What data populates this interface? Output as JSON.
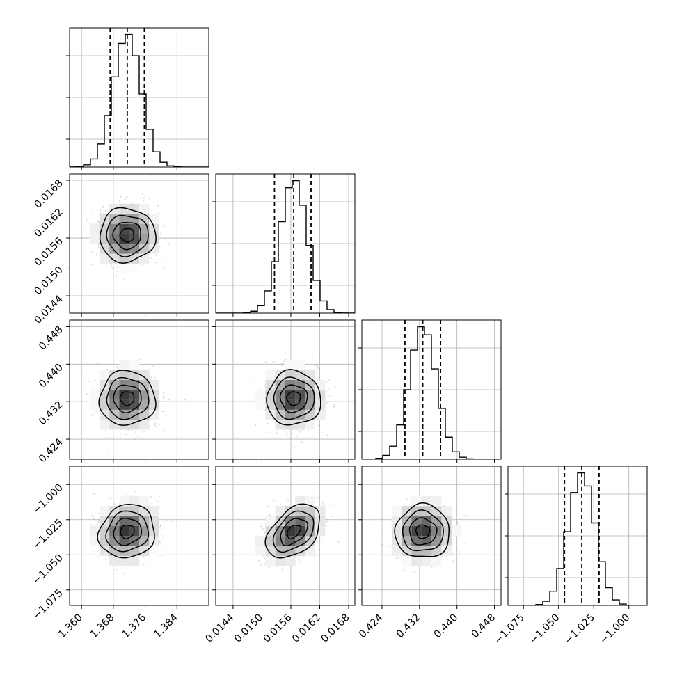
{
  "chart_data": {
    "type": "corner",
    "grid": true,
    "parameters": [
      {
        "ticks": [
          1.36,
          1.368,
          1.376,
          1.384
        ],
        "tick_labels": [
          "1.360",
          "1.368",
          "1.376",
          "1.384"
        ],
        "range": [
          1.357,
          1.392
        ],
        "mean": 1.3715,
        "sd": 0.0035,
        "quantiles": [
          1.3672,
          1.3715,
          1.3758
        ]
      },
      {
        "ticks": [
          0.0144,
          0.015,
          0.0156,
          0.0162,
          0.0168
        ],
        "tick_labels": [
          "0.0144",
          "0.0150",
          "0.0156",
          "0.0162",
          "0.0168"
        ],
        "range": [
          0.01404,
          0.01693
        ],
        "mean": 0.01566,
        "sd": 0.00028,
        "quantiles": [
          0.01526,
          0.01566,
          0.01602
        ]
      },
      {
        "ticks": [
          0.424,
          0.432,
          0.44,
          0.448
        ],
        "tick_labels": [
          "0.424",
          "0.432",
          "0.440",
          "0.448"
        ],
        "range": [
          0.4197,
          0.4494
        ],
        "mean": 0.4327,
        "sd": 0.0029,
        "quantiles": [
          0.4289,
          0.4327,
          0.4365
        ]
      },
      {
        "ticks": [
          -1.075,
          -1.05,
          -1.025,
          -1.0
        ],
        "tick_labels": [
          "−1.075",
          "−1.050",
          "−1.025",
          "−1.000"
        ],
        "range": [
          -1.086,
          -0.987
        ],
        "mean": -1.0335,
        "sd": 0.0095,
        "quantiles": [
          -1.0458,
          -1.0335,
          -1.0212
        ]
      }
    ],
    "correlations": [
      {
        "i": 0,
        "j": 1,
        "rho": 0.0
      },
      {
        "i": 0,
        "j": 2,
        "rho": 0.0
      },
      {
        "i": 0,
        "j": 3,
        "rho": 0.1
      },
      {
        "i": 1,
        "j": 2,
        "rho": 0.0
      },
      {
        "i": 1,
        "j": 3,
        "rho": 0.42
      },
      {
        "i": 2,
        "j": 3,
        "rho": 0.0
      }
    ],
    "histogram_bins": 20,
    "contour_levels": [
      0.118,
      0.393,
      0.675,
      0.865
    ],
    "colors": {
      "line": "#000000",
      "grid": "#b0b0b0",
      "points": "#888888",
      "density": "#000000"
    }
  }
}
